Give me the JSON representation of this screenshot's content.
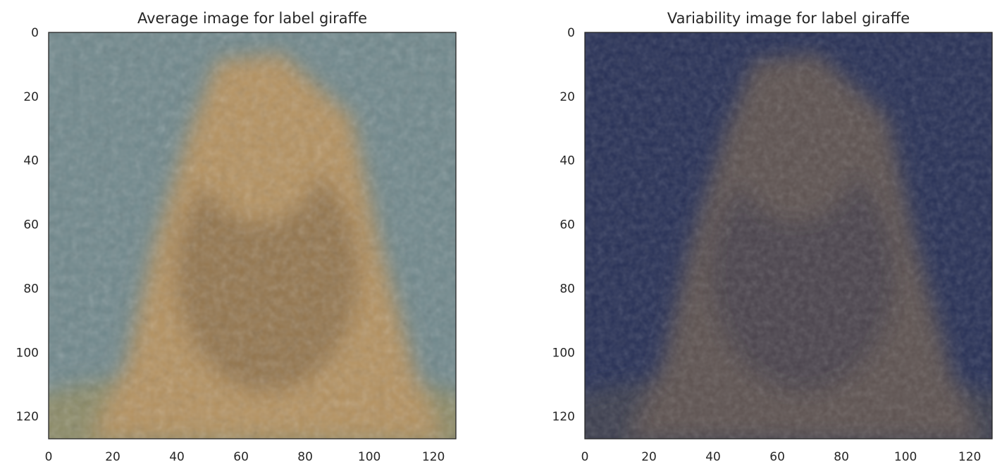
{
  "chart_data": [
    {
      "type": "heatmap",
      "title": "Average image for label giraffe",
      "xlabel": "",
      "ylabel": "",
      "xlim": [
        0,
        127
      ],
      "ylim": [
        127,
        0
      ],
      "xticks": [
        0,
        20,
        40,
        60,
        80,
        100,
        120
      ],
      "yticks": [
        0,
        20,
        40,
        60,
        80,
        100,
        120
      ],
      "grid": false,
      "palette": {
        "background": "#6f878b",
        "body": "#b4915e",
        "body_dark": "#7d6244",
        "ground": "#8b8a66"
      }
    },
    {
      "type": "heatmap",
      "title": "Variability image for label giraffe",
      "xlabel": "",
      "ylabel": "",
      "xlim": [
        0,
        127
      ],
      "ylim": [
        127,
        0
      ],
      "xticks": [
        0,
        20,
        40,
        60,
        80,
        100,
        120
      ],
      "yticks": [
        0,
        20,
        40,
        60,
        80,
        100,
        120
      ],
      "grid": false,
      "palette": {
        "background": "#262f55",
        "body": "#5b5150",
        "body_dark": "#3f3b48",
        "ground": "#3a3d4d"
      }
    }
  ]
}
